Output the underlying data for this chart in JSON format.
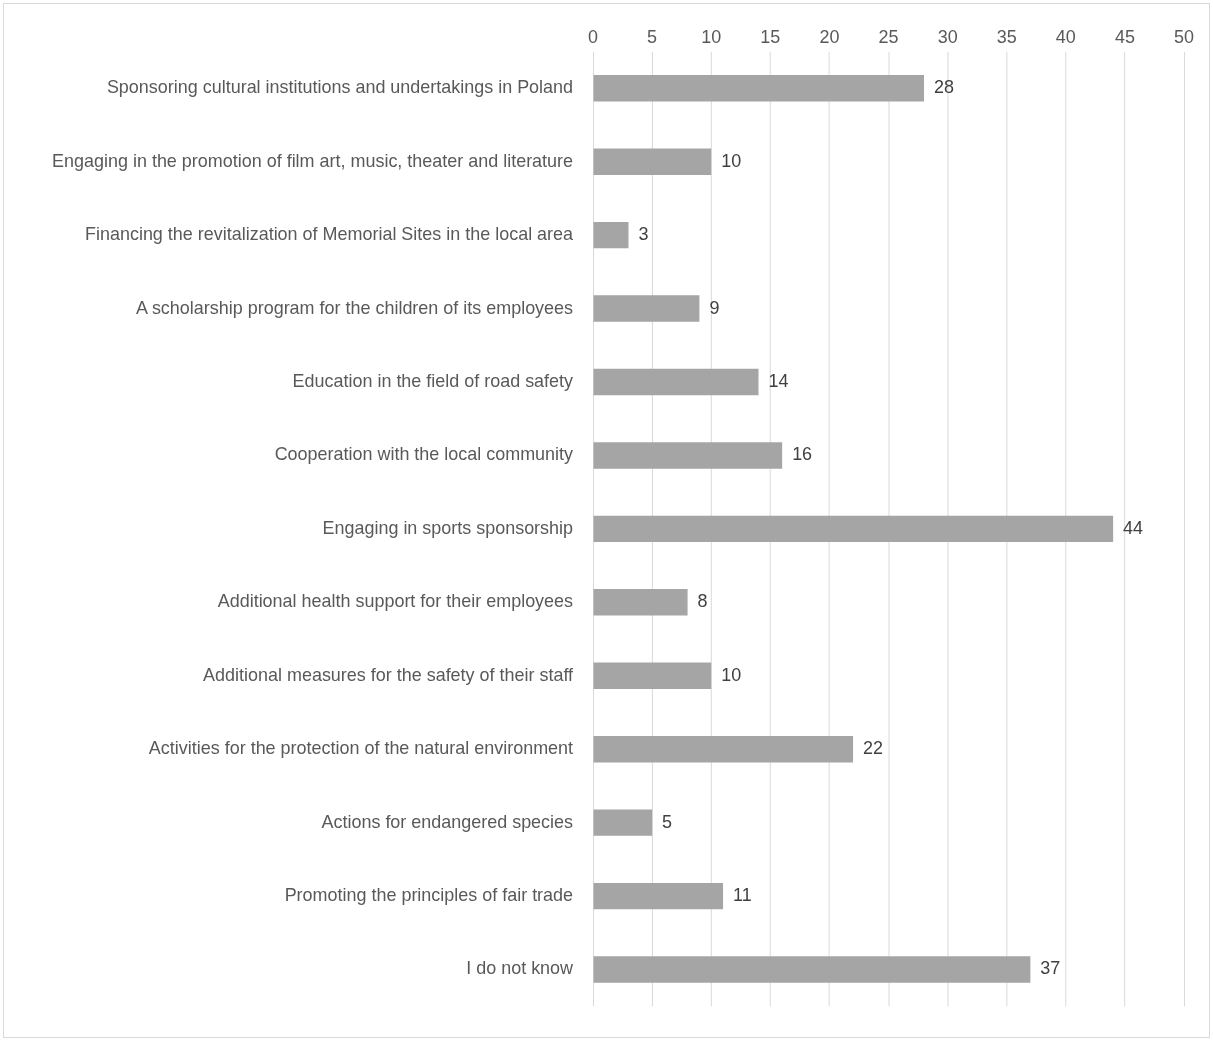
{
  "chart_data": {
    "type": "bar",
    "orientation": "horizontal",
    "categories": [
      "Sponsoring cultural institutions and undertakings in Poland",
      "Engaging in the promotion of film art, music, theater and literature",
      "Financing the revitalization of Memorial Sites in the local area",
      "A scholarship program for the children of its employees",
      "Education in the field of road safety",
      "Cooperation with the local community",
      "Engaging in sports sponsorship",
      "Additional health support for their employees",
      "Additional measures for the safety of their staff",
      "Activities for the protection of the natural environment",
      "Actions for endangered species",
      "Promoting the principles of fair trade",
      "I do not know"
    ],
    "values": [
      28,
      10,
      3,
      9,
      14,
      16,
      44,
      8,
      10,
      22,
      5,
      11,
      37
    ],
    "color": "#a5a5a5",
    "xlim": [
      0,
      50
    ],
    "xticks": [
      0,
      5,
      10,
      15,
      20,
      25,
      30,
      35,
      40,
      45,
      50
    ],
    "grid": "x",
    "data_labels": true,
    "legend": false
  }
}
